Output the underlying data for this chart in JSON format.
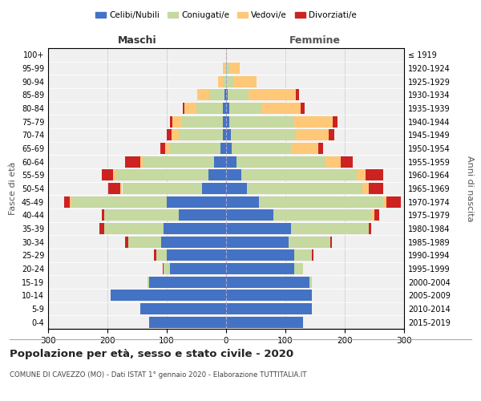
{
  "age_groups": [
    "0-4",
    "5-9",
    "10-14",
    "15-19",
    "20-24",
    "25-29",
    "30-34",
    "35-39",
    "40-44",
    "45-49",
    "50-54",
    "55-59",
    "60-64",
    "65-69",
    "70-74",
    "75-79",
    "80-84",
    "85-89",
    "90-94",
    "95-99",
    "100+"
  ],
  "birth_years": [
    "2015-2019",
    "2010-2014",
    "2005-2009",
    "2000-2004",
    "1995-1999",
    "1990-1994",
    "1985-1989",
    "1980-1984",
    "1975-1979",
    "1970-1974",
    "1965-1969",
    "1960-1964",
    "1955-1959",
    "1950-1954",
    "1945-1949",
    "1940-1944",
    "1935-1939",
    "1930-1934",
    "1925-1929",
    "1920-1924",
    "≤ 1919"
  ],
  "male": {
    "celibi": [
      130,
      145,
      195,
      130,
      95,
      100,
      110,
      105,
      80,
      100,
      40,
      30,
      20,
      10,
      5,
      5,
      5,
      3,
      0,
      0,
      0
    ],
    "coniugati": [
      0,
      0,
      0,
      3,
      10,
      18,
      55,
      100,
      125,
      160,
      135,
      155,
      120,
      85,
      75,
      70,
      45,
      25,
      5,
      2,
      0
    ],
    "vedovi": [
      0,
      0,
      0,
      0,
      0,
      0,
      0,
      0,
      0,
      3,
      3,
      5,
      5,
      8,
      12,
      15,
      20,
      20,
      8,
      3,
      0
    ],
    "divorziati": [
      0,
      0,
      0,
      0,
      2,
      3,
      5,
      8,
      5,
      10,
      20,
      20,
      25,
      8,
      8,
      5,
      3,
      0,
      0,
      0,
      0
    ]
  },
  "female": {
    "nubili": [
      130,
      145,
      145,
      140,
      115,
      115,
      105,
      110,
      80,
      55,
      35,
      25,
      18,
      10,
      8,
      5,
      5,
      3,
      0,
      0,
      0
    ],
    "coniugate": [
      0,
      0,
      0,
      5,
      15,
      30,
      70,
      130,
      165,
      210,
      195,
      195,
      150,
      100,
      110,
      110,
      55,
      35,
      12,
      5,
      0
    ],
    "vedove": [
      0,
      0,
      0,
      0,
      0,
      0,
      0,
      0,
      5,
      5,
      10,
      15,
      25,
      45,
      55,
      65,
      65,
      80,
      40,
      18,
      2
    ],
    "divorziate": [
      0,
      0,
      0,
      0,
      0,
      2,
      3,
      5,
      8,
      25,
      25,
      30,
      20,
      8,
      10,
      8,
      8,
      5,
      0,
      0,
      0
    ]
  },
  "colors": {
    "celibi": "#4472c4",
    "coniugati": "#c5d9a0",
    "vedovi": "#ffc878",
    "divorziati": "#cc2222"
  },
  "xlim": 300,
  "title": "Popolazione per età, sesso e stato civile - 2020",
  "subtitle": "COMUNE DI CAVEZZO (MO) - Dati ISTAT 1° gennaio 2020 - Elaborazione TUTTITALIA.IT",
  "legend_labels": [
    "Celibi/Nubili",
    "Coniugati/e",
    "Vedovi/e",
    "Divorziati/e"
  ],
  "ylabel_left": "Fasce di età",
  "ylabel_right": "Anni di nascita",
  "header_left": "Maschi",
  "header_right": "Femmine",
  "bg_color": "#f0f0f0"
}
